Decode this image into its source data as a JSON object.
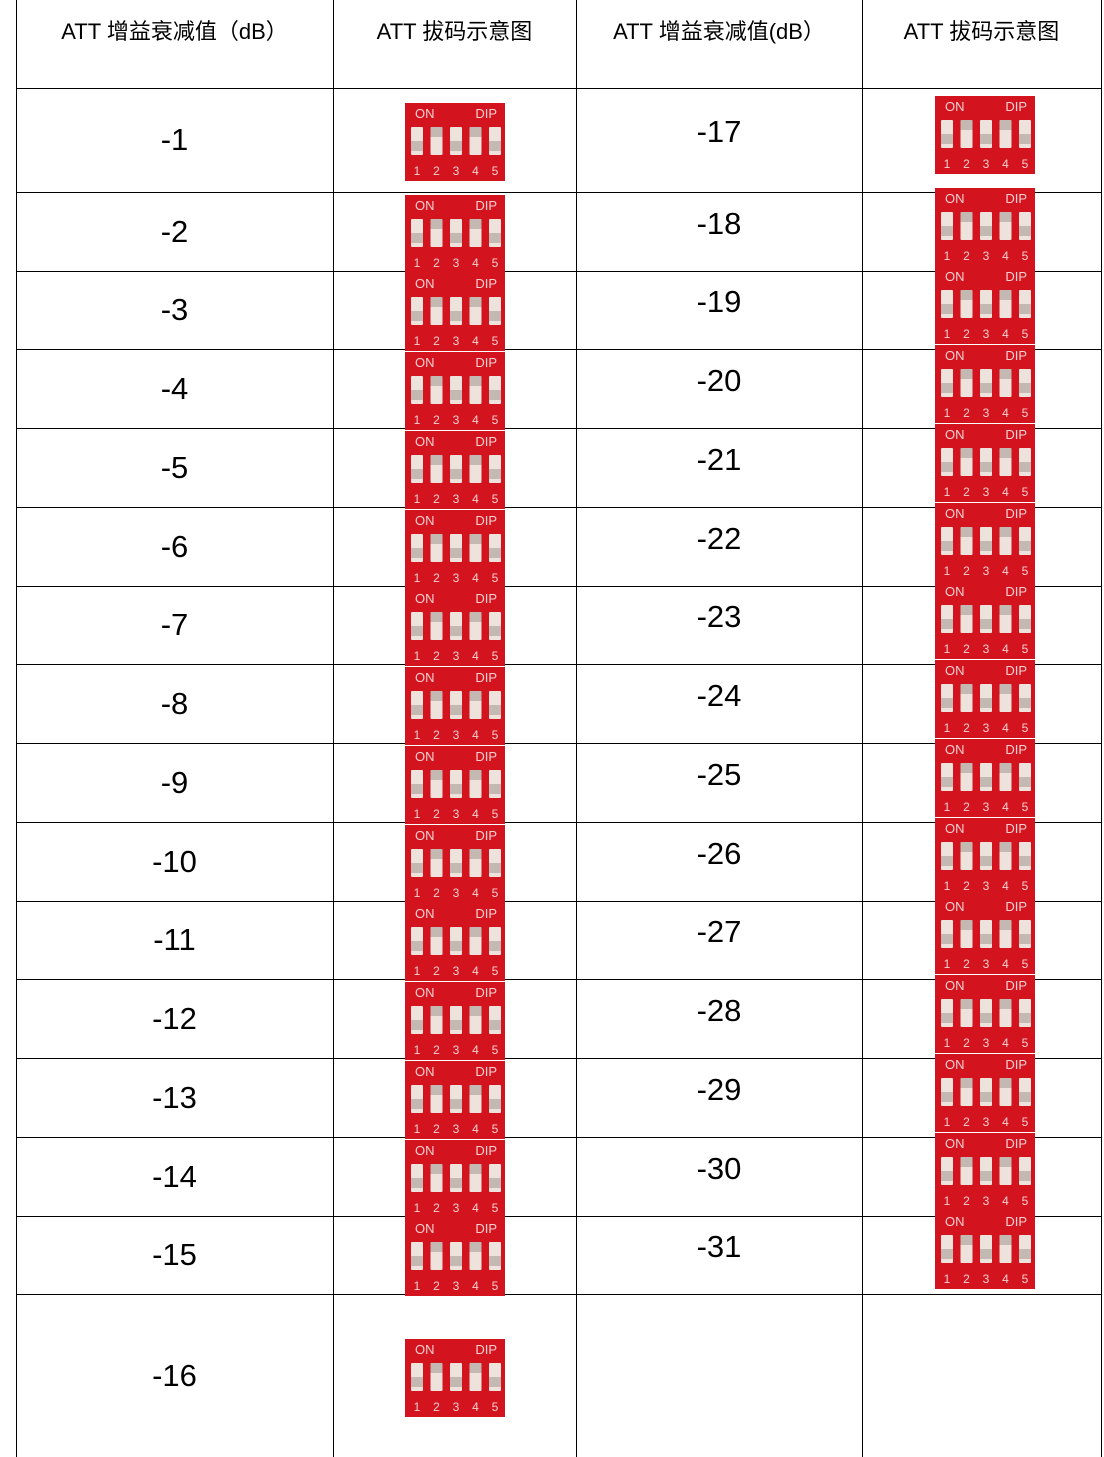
{
  "table": {
    "headers": [
      "ATT 增益衰减值（dB）",
      "ATT 拔码示意图",
      "ATT 增益衰减值(dB）",
      "ATT 拔码示意图"
    ],
    "rows": [
      {
        "left": "-1",
        "right": "-17"
      },
      {
        "left": "-2",
        "right": "-18"
      },
      {
        "left": "-3",
        "right": "-19"
      },
      {
        "left": "-4",
        "right": "-20"
      },
      {
        "left": "-5",
        "right": "-21"
      },
      {
        "left": "-6",
        "right": "-22"
      },
      {
        "left": "-7",
        "right": "-23"
      },
      {
        "left": "-8",
        "right": "-24"
      },
      {
        "left": "-9",
        "right": "-25"
      },
      {
        "left": "-10",
        "right": "-26"
      },
      {
        "left": "-11",
        "right": "-27"
      },
      {
        "left": "-12",
        "right": "-28"
      },
      {
        "left": "-13",
        "right": "-29"
      },
      {
        "left": "-14",
        "right": "-30"
      },
      {
        "left": "-15",
        "right": "-31"
      },
      {
        "left": "-16"
      }
    ]
  },
  "dip_label": {
    "on": "ON",
    "dip": "DIP",
    "numbers": [
      "1",
      "2",
      "3",
      "4",
      "5"
    ]
  }
}
